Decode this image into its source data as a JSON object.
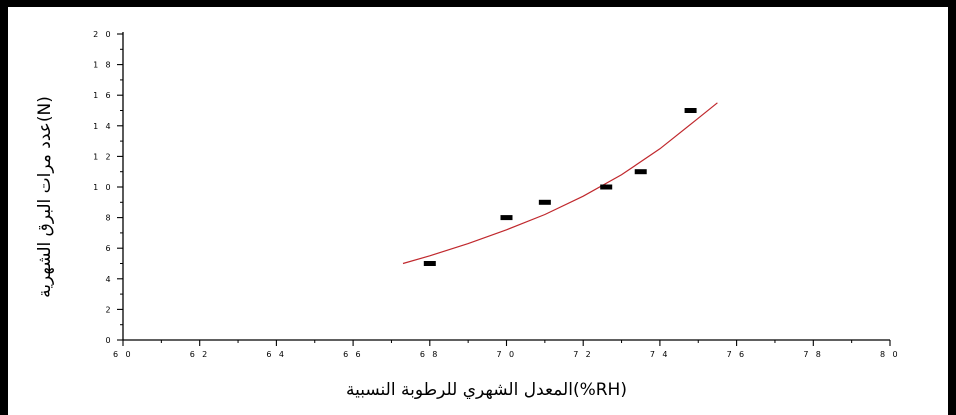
{
  "chart_data": {
    "type": "scatter",
    "title": "",
    "xlabel": "(RH%)المعدل الشهري للرطوبة النسبية",
    "ylabel": "(N)عدد مرات البرق الشهرية",
    "xlim": [
      60,
      80
    ],
    "ylim": [
      0,
      20
    ],
    "x_ticks": [
      "6 0",
      "6 2",
      "6 4",
      "6 6",
      "6 8",
      "7 0",
      "7 2",
      "7 4",
      "7 6",
      "7 8",
      "8 0"
    ],
    "y_ticks": [
      "0",
      "2",
      "4",
      "6",
      "8",
      "1 0",
      "1 2",
      "1 4",
      "1 6",
      "1 8",
      "2 0"
    ],
    "grid": false,
    "series": [
      {
        "type": "scatter",
        "x": [
          68.0,
          70.0,
          71.0,
          72.6,
          73.5,
          74.8
        ],
        "y": [
          5,
          8,
          9,
          10,
          11,
          15
        ],
        "color": "#000000"
      },
      {
        "type": "line",
        "fit": "exponential",
        "x": [
          67.3,
          68.0,
          69.0,
          70.0,
          71.0,
          72.0,
          73.0,
          74.0,
          75.0,
          75.5
        ],
        "y": [
          5.0,
          5.5,
          6.3,
          7.2,
          8.2,
          9.4,
          10.8,
          12.5,
          14.5,
          15.5
        ],
        "color": "#c0282d"
      }
    ]
  }
}
